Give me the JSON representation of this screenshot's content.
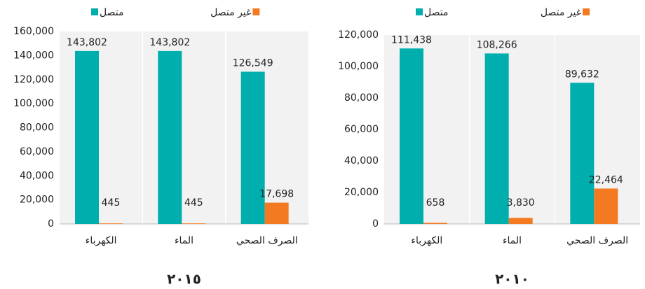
{
  "chart_data": [
    {
      "type": "bar",
      "title": "٢٠١٥",
      "categories": [
        "الكهرباء",
        "الماء",
        "الصرف الصحي"
      ],
      "series": [
        {
          "name": "متصل",
          "color": "#00aeae",
          "values": [
            143802,
            143802,
            126549
          ],
          "value_labels": [
            "143,802",
            "143,802",
            "126,549"
          ]
        },
        {
          "name": "غير متصل",
          "color": "#f47a22",
          "values": [
            445,
            445,
            17698
          ],
          "value_labels": [
            "445",
            "445",
            "17,698"
          ]
        }
      ],
      "ylim": [
        0,
        160000
      ],
      "yticks": [
        0,
        {
          "value": 20000,
          "label": "20,000"
        },
        {
          "value": 40000,
          "label": "40,000"
        },
        {
          "value": 60000,
          "label": "60,000"
        },
        {
          "value": 80000,
          "label": "80,000"
        },
        {
          "value": 100000,
          "label": "100,000"
        },
        {
          "value": 120000,
          "label": "120,000"
        },
        {
          "value": 140000,
          "label": "140,000"
        },
        {
          "value": 160000,
          "label": "160,000"
        }
      ]
    },
    {
      "type": "bar",
      "title": "٢٠١٠",
      "categories": [
        "الكهرباء",
        "الماء",
        "الصرف الصحي"
      ],
      "series": [
        {
          "name": "متصل",
          "color": "#00aeae",
          "values": [
            111438,
            108266,
            89632
          ],
          "value_labels": [
            "111,438",
            "108,266",
            "89,632"
          ]
        },
        {
          "name": "غير متصل",
          "color": "#f47a22",
          "values": [
            658,
            3830,
            22464
          ],
          "value_labels": [
            "658",
            "3,830",
            "22,464"
          ]
        }
      ],
      "ylim": [
        0,
        120000
      ],
      "yticks": [
        0,
        {
          "value": 20000,
          "label": "20,000"
        },
        {
          "value": 40000,
          "label": "40,000"
        },
        {
          "value": 60000,
          "label": "60,000"
        },
        {
          "value": 80000,
          "label": "80,000"
        },
        {
          "value": 100000,
          "label": "100,000"
        },
        {
          "value": 120000,
          "label": "120,000"
        }
      ]
    }
  ]
}
